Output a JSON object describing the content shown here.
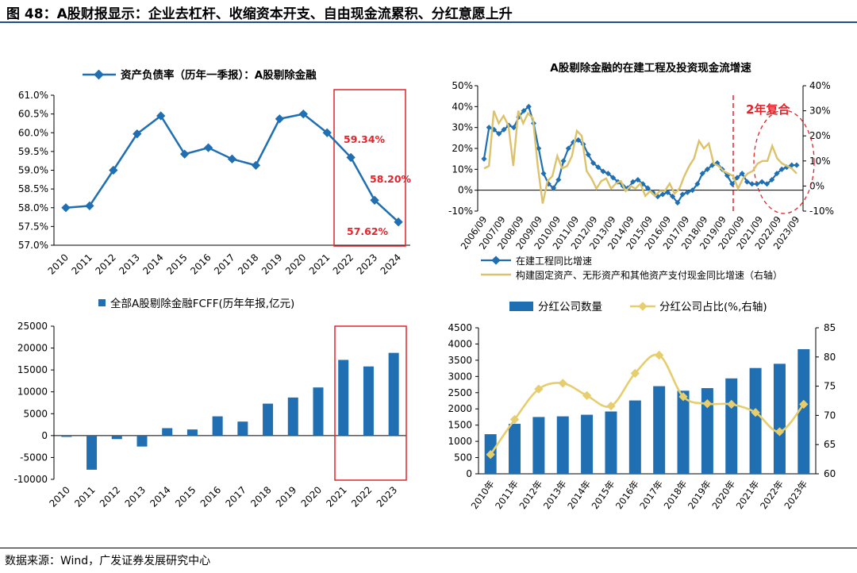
{
  "figure": {
    "title": "图 48：A股财报显示：企业去杠杆、收缩资本开支、自由现金流累积、分红意愿上升",
    "source": "数据来源：Wind，广发证券发展研究中心"
  },
  "chart_data": [
    {
      "type": "line",
      "title": "",
      "legend": "资产负债率（历年一季报）：A股剔除金融",
      "categories": [
        "2010",
        "2011",
        "2012",
        "2013",
        "2014",
        "2015",
        "2016",
        "2017",
        "2018",
        "2019",
        "2020",
        "2021",
        "2022",
        "2023",
        "2024"
      ],
      "values": [
        58.0,
        58.05,
        59.0,
        59.97,
        60.45,
        59.43,
        59.6,
        59.3,
        59.13,
        60.37,
        60.5,
        60.0,
        59.34,
        58.2,
        57.62
      ],
      "ylim": [
        57.0,
        61.0
      ],
      "yticks": [
        "57.0%",
        "57.5%",
        "58.0%",
        "58.5%",
        "59.0%",
        "59.5%",
        "60.0%",
        "60.5%",
        "61.0%"
      ],
      "annotations": [
        "59.34%",
        "58.20%",
        "57.62%"
      ],
      "color": "#1f6fb2"
    },
    {
      "type": "line",
      "title": "A股剔除金融的在建工程及投资现金流增速",
      "legend_left": "在建工程同比增速",
      "legend_right": "构建固定资产、无形资产和其他资产支付现金同比增速（右轴）",
      "annotation": "2年复合",
      "xticks": [
        "2006/09",
        "2007/09",
        "2008/09",
        "2009/09",
        "2010/09",
        "2011/09",
        "2012/09",
        "2013/09",
        "2014/09",
        "2015/09",
        "2016/09",
        "2017/09",
        "2018/09",
        "2019/09",
        "2020/09",
        "2021/09",
        "2022/09",
        "2023/09"
      ],
      "yticks_left": [
        "-10%",
        "0%",
        "10%",
        "20%",
        "30%",
        "40%",
        "50%"
      ],
      "yticks_right": [
        "-10%",
        "0%",
        "10%",
        "20%",
        "30%",
        "40%"
      ],
      "ylim_left": [
        -10,
        50
      ],
      "ylim_right": [
        -10,
        40
      ],
      "series": [
        {
          "name": "在建工程同比增速",
          "axis": "left",
          "color": "#1f6fb2",
          "values": [
            15,
            30,
            29,
            27,
            29,
            31,
            30,
            35,
            38,
            40,
            32,
            20,
            8,
            3,
            1,
            5,
            14,
            20,
            23,
            24,
            22,
            17,
            13,
            11,
            9,
            8,
            6,
            4,
            2,
            1,
            4,
            5,
            3,
            1,
            -1,
            -3,
            -2,
            -1,
            -3,
            -6,
            -2,
            -1,
            0,
            3,
            8,
            10,
            12,
            13,
            10,
            7,
            3,
            6,
            8,
            4,
            3,
            3,
            4,
            3,
            5,
            8,
            10,
            11,
            12,
            12
          ]
        },
        {
          "name": "构建固定资产、无形资产和其他资产支付现金同比增速（右轴）",
          "axis": "right",
          "color": "#dcc26a",
          "values": [
            7,
            8,
            30,
            25,
            28,
            24,
            8,
            30,
            25,
            29,
            27,
            8,
            -7,
            2,
            4,
            12,
            7,
            8,
            12,
            22,
            20,
            6,
            3,
            -1,
            2,
            3,
            -1,
            1,
            2,
            -2,
            0,
            -1,
            1,
            -4,
            -2,
            -4,
            -2,
            -2,
            1,
            -3,
            -1,
            4,
            8,
            11,
            18,
            15,
            17,
            9,
            8,
            6,
            5,
            4,
            -1,
            3,
            5,
            6,
            9,
            10,
            10,
            16,
            11,
            9,
            8,
            7,
            5
          ]
        }
      ]
    },
    {
      "type": "bar",
      "title": "",
      "legend": "全部A股剔除金融FCFF(历年年报,亿元)",
      "categories": [
        "2010",
        "2011",
        "2012",
        "2013",
        "2014",
        "2015",
        "2016",
        "2017",
        "2018",
        "2019",
        "2020",
        "2021",
        "2022",
        "2023"
      ],
      "values": [
        -300,
        -7800,
        -800,
        -2500,
        1700,
        1400,
        4400,
        3200,
        7300,
        8700,
        11000,
        17300,
        15800,
        18900
      ],
      "ylim": [
        -10000,
        25000
      ],
      "yticks": [
        "-10000",
        "-5000",
        "0",
        "5000",
        "10000",
        "15000",
        "20000",
        "25000"
      ],
      "color": "#1f6fb2"
    },
    {
      "type": "bar",
      "title": "",
      "legend_bar": "分红公司数量",
      "legend_line": "分红公司占比(%,右轴)",
      "categories": [
        "2010年",
        "2011年",
        "2012年",
        "2013年",
        "2014年",
        "2015年",
        "2016年",
        "2017年",
        "2018年",
        "2019年",
        "2020年",
        "2021年",
        "2022年",
        "2023年"
      ],
      "series": [
        {
          "name": "分红公司数量",
          "axis": "left",
          "kind": "bar",
          "color": "#1f6fb2",
          "values": [
            1220,
            1540,
            1750,
            1770,
            1820,
            1920,
            2260,
            2700,
            2560,
            2640,
            2940,
            3260,
            3390,
            3840
          ]
        },
        {
          "name": "分红公司占比(%,右轴)",
          "axis": "right",
          "kind": "line",
          "color": "#e6cd6d",
          "values": [
            63.3,
            69.3,
            74.5,
            75.5,
            73.4,
            71.6,
            77.2,
            80.3,
            73.2,
            72.0,
            71.9,
            70.5,
            67.2,
            71.9
          ]
        }
      ],
      "ylim_left": [
        0,
        4500
      ],
      "ylim_right": [
        60,
        85
      ],
      "yticks_left": [
        "0",
        "500",
        "1000",
        "1500",
        "2000",
        "2500",
        "3000",
        "3500",
        "4000",
        "4500"
      ],
      "yticks_right": [
        "60",
        "65",
        "70",
        "75",
        "80",
        "85"
      ]
    }
  ]
}
